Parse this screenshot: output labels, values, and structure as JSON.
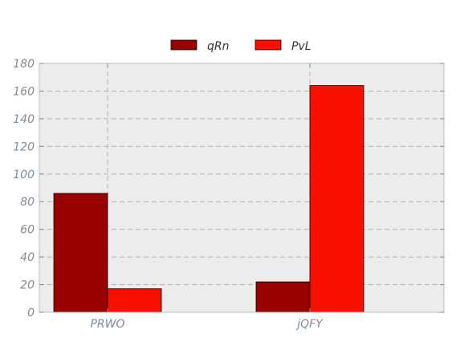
{
  "chart_data": {
    "type": "bar",
    "title": "",
    "xlabel": "",
    "ylabel": "",
    "categories": [
      "PRWO",
      "jQFY"
    ],
    "series": [
      {
        "name": "qRn",
        "values": [
          86,
          22
        ],
        "color": "#990000"
      },
      {
        "name": "PvL",
        "values": [
          17,
          164
        ],
        "color": "#f70f00"
      }
    ],
    "ylim": [
      0,
      180
    ],
    "yticks": [
      0,
      20,
      40,
      60,
      80,
      100,
      120,
      140,
      160,
      180
    ],
    "grid": true,
    "legend_position": "top-center",
    "plot_background": "#ececec",
    "bar_edge_color": "#000000"
  }
}
